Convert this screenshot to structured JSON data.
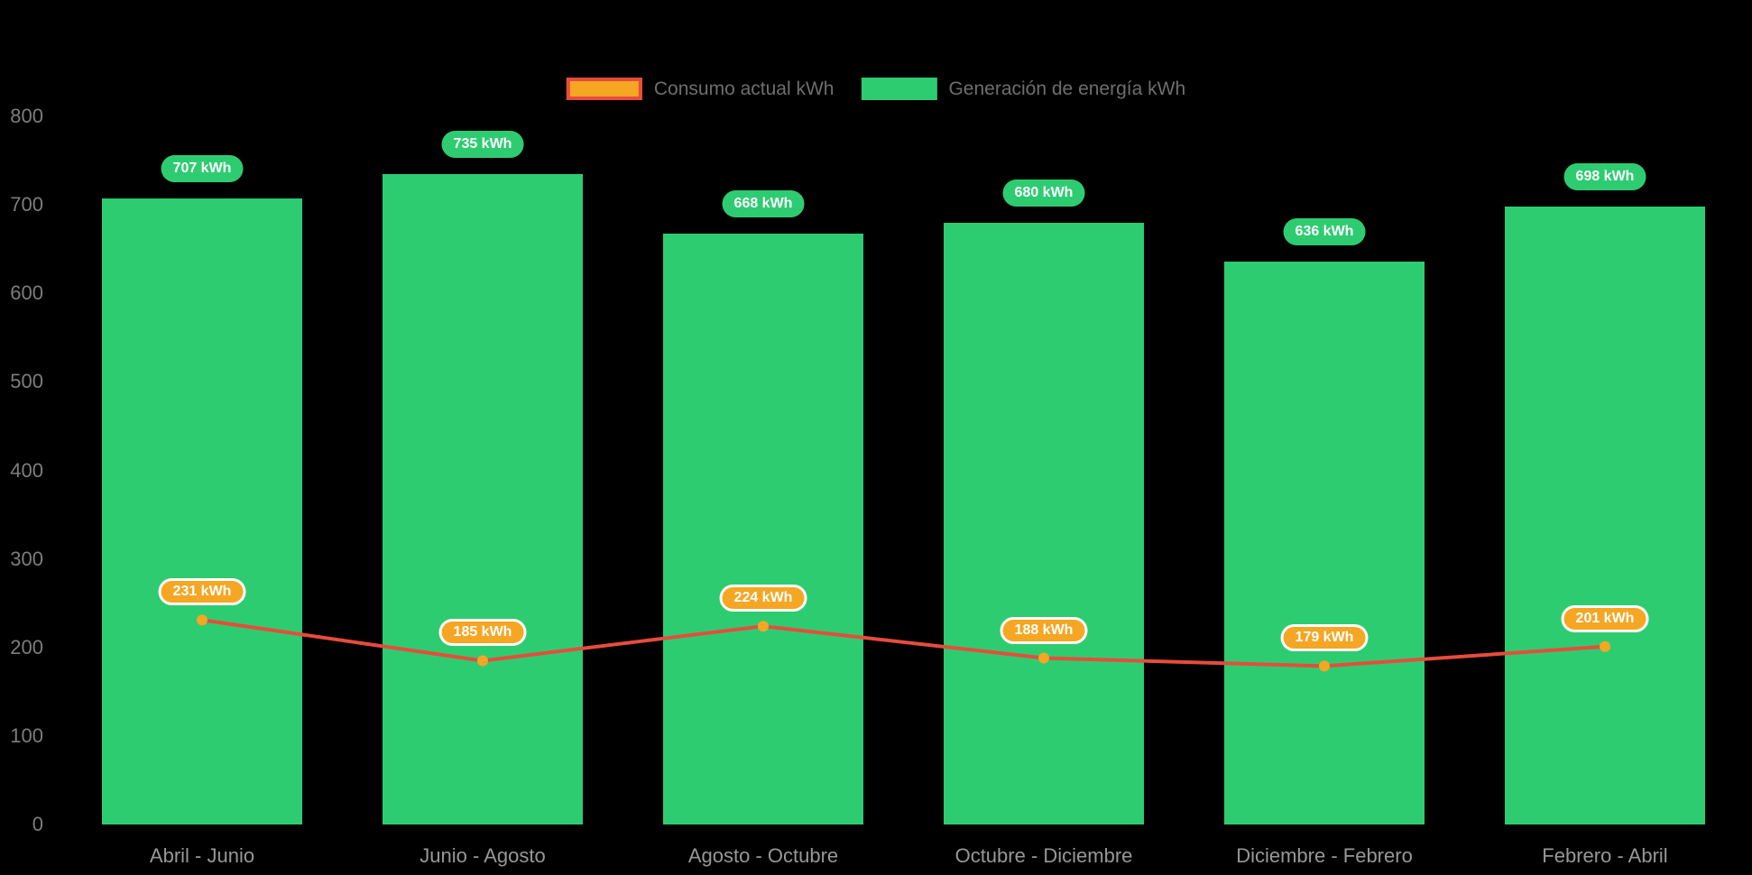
{
  "chart_data": {
    "type": "bar",
    "subtype": "bar-with-line-overlay",
    "title": "",
    "xlabel": "",
    "ylabel": "",
    "categories": [
      "Abril - Junio",
      "Junio - Agosto",
      "Agosto - Octubre",
      "Octubre - Diciembre",
      "Diciembre - Febrero",
      "Febrero - Abril"
    ],
    "series": [
      {
        "name": "Consumo actual kWh",
        "type": "line",
        "values": [
          231,
          185,
          224,
          188,
          179,
          201
        ],
        "label_suffix": " kWh"
      },
      {
        "name": "Generación de energía kWh",
        "type": "bar",
        "values": [
          707,
          735,
          668,
          680,
          636,
          698
        ],
        "label_suffix": " kWh"
      }
    ],
    "ylim": [
      0,
      800
    ],
    "yticks": [
      0,
      100,
      200,
      300,
      400,
      500,
      600,
      700,
      800
    ],
    "grid": false,
    "legend_position": "top-center"
  },
  "legend": {
    "consumo_label": "Consumo actual kWh",
    "generacion_label": "Generación de energía kWh"
  },
  "colors": {
    "background": "#000000",
    "bar": "#2ecc71",
    "bar_label_bg": "#2ecc71",
    "line": "#e74c3c",
    "point": "#f5a623",
    "line_label_bg": "#f5a623",
    "label_text": "#ffffff",
    "axis_text": "#7d7d7d",
    "category_text": "#979797",
    "legend_text": "#6e6e6e"
  }
}
